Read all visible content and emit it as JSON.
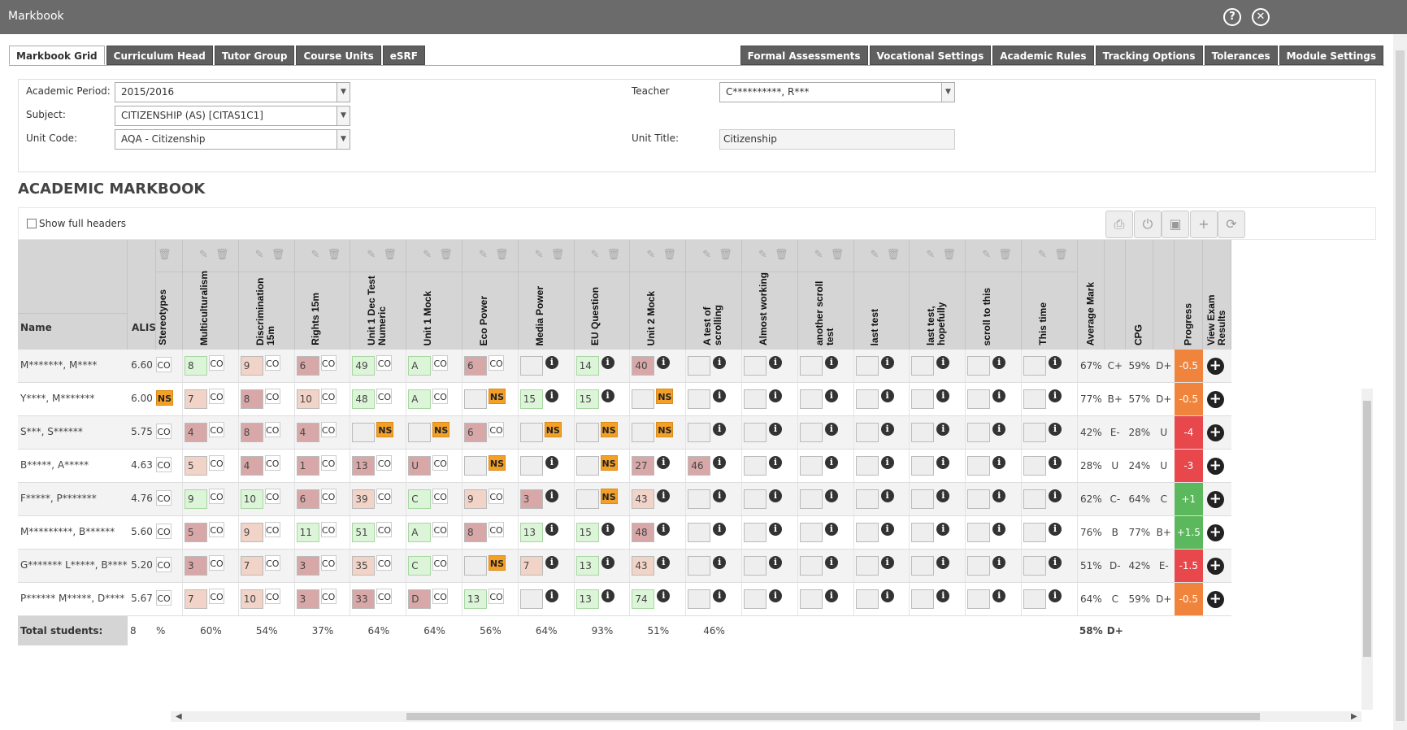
{
  "window": {
    "title": "Markbook",
    "help_icon": "help-icon",
    "close_icon": "close-icon"
  },
  "tabs_left": [
    "Markbook Grid",
    "Curriculum Head",
    "Tutor Group",
    "Course Units",
    "eSRF"
  ],
  "tabs_right": [
    "Formal Assessments",
    "Vocational Settings",
    "Academic Rules",
    "Tracking Options",
    "Tolerances",
    "Module Settings"
  ],
  "filters": {
    "academic_period_label": "Academic Period:",
    "academic_period_value": "2015/2016",
    "subject_label": "Subject:",
    "subject_value": "CITIZENSHIP (AS) [CITAS1C1]",
    "unit_code_label": "Unit Code:",
    "unit_code_value": "AQA - Citizenship",
    "teacher_label": "Teacher",
    "teacher_value": "C**********, R***",
    "unit_title_label": "Unit Title:",
    "unit_title_value": "Citizenship"
  },
  "markbook": {
    "title": "ACADEMIC MARKBOOK",
    "show_full_headers": "Show full headers",
    "toolbar_icons": [
      "print-icon",
      "power-icon",
      "save-icon",
      "plus-icon",
      "refresh-icon"
    ]
  },
  "grid": {
    "name_header": "Name",
    "alis_header": "ALIS",
    "partial_header": "Stereotypes",
    "columns": [
      "Multiculturalism",
      "Discrimination 15m",
      "Rights 15m",
      "Unit 1 Dec Test Numeric",
      "Unit 1 Mock",
      "Eco Power",
      "Media Power",
      "EU Question",
      "Unit 2 Mock",
      "A test of scrolling",
      "Almost working",
      "another scroll test",
      "last test",
      "last test, hopefully",
      "scroll to this",
      "This time"
    ],
    "summary_headers": [
      "Average Mark",
      "CPG",
      "Progress",
      "View Exam Results"
    ],
    "rows": [
      {
        "name": "M*******, M****",
        "alis": "6.60",
        "partial": "CO",
        "avg": "67%",
        "grade1": "C+",
        "cpg": "59%",
        "grade2": "D+",
        "progress": "-0.5",
        "progress_color": "#f0843c",
        "marks": [
          [
            "8",
            "green",
            "CO"
          ],
          [
            "9",
            "pink",
            "CO"
          ],
          [
            "6",
            "rose",
            "CO"
          ],
          [
            "49",
            "green",
            "CO"
          ],
          [
            "A",
            "green",
            "CO"
          ],
          [
            "6",
            "rose",
            "CO"
          ],
          [
            "",
            "blank",
            "i"
          ],
          [
            "14",
            "green",
            "i"
          ],
          [
            "40",
            "rose",
            "i"
          ],
          [
            "",
            "blank",
            "i"
          ],
          [
            "",
            "blank",
            "i"
          ],
          [
            "",
            "blank",
            "i"
          ],
          [
            "",
            "blank",
            "i"
          ],
          [
            "",
            "blank",
            "i"
          ],
          [
            "",
            "blank",
            "i"
          ],
          [
            "",
            "blank",
            "i"
          ]
        ]
      },
      {
        "name": "Y****, M*******",
        "alis": "6.00",
        "partial": "NS",
        "avg": "77%",
        "grade1": "B+",
        "cpg": "57%",
        "grade2": "D+",
        "progress": "-0.5",
        "progress_color": "#f0843c",
        "marks": [
          [
            "7",
            "pink",
            "CO"
          ],
          [
            "8",
            "rose",
            "CO"
          ],
          [
            "10",
            "pink",
            "CO"
          ],
          [
            "48",
            "green",
            "CO"
          ],
          [
            "A",
            "green",
            "CO"
          ],
          [
            "",
            "blank",
            "NS"
          ],
          [
            "15",
            "green",
            "i"
          ],
          [
            "15",
            "green",
            "i"
          ],
          [
            "",
            "blank",
            "NS"
          ],
          [
            "",
            "blank",
            "i"
          ],
          [
            "",
            "blank",
            "i"
          ],
          [
            "",
            "blank",
            "i"
          ],
          [
            "",
            "blank",
            "i"
          ],
          [
            "",
            "blank",
            "i"
          ],
          [
            "",
            "blank",
            "i"
          ],
          [
            "",
            "blank",
            "i"
          ]
        ]
      },
      {
        "name": "S***, S******",
        "alis": "5.75",
        "partial": "CO",
        "avg": "42%",
        "grade1": "E-",
        "cpg": "28%",
        "grade2": "U",
        "progress": "-4",
        "progress_color": "#e8474c",
        "marks": [
          [
            "4",
            "rose",
            "CO"
          ],
          [
            "8",
            "rose",
            "CO"
          ],
          [
            "4",
            "rose",
            "CO"
          ],
          [
            "",
            "blank",
            "NS"
          ],
          [
            "",
            "blank",
            "NS"
          ],
          [
            "6",
            "rose",
            "CO"
          ],
          [
            "",
            "blank",
            "NS"
          ],
          [
            "",
            "blank",
            "NS"
          ],
          [
            "",
            "blank",
            "NS"
          ],
          [
            "",
            "blank",
            "i"
          ],
          [
            "",
            "blank",
            "i"
          ],
          [
            "",
            "blank",
            "i"
          ],
          [
            "",
            "blank",
            "i"
          ],
          [
            "",
            "blank",
            "i"
          ],
          [
            "",
            "blank",
            "i"
          ],
          [
            "",
            "blank",
            "i"
          ]
        ]
      },
      {
        "name": "B*****, A*****",
        "alis": "4.63",
        "partial": "CO",
        "avg": "28%",
        "grade1": "U",
        "cpg": "24%",
        "grade2": "U",
        "progress": "-3",
        "progress_color": "#e8474c",
        "marks": [
          [
            "5",
            "pink",
            "CO"
          ],
          [
            "4",
            "rose",
            "CO"
          ],
          [
            "1",
            "rose",
            "CO"
          ],
          [
            "13",
            "rose",
            "CO"
          ],
          [
            "U",
            "rose",
            "CO"
          ],
          [
            "",
            "blank",
            "NS"
          ],
          [
            "",
            "blank",
            "i"
          ],
          [
            "",
            "blank",
            "NS"
          ],
          [
            "27",
            "rose",
            "i"
          ],
          [
            "46",
            "rose",
            "i"
          ],
          [
            "",
            "blank",
            "i"
          ],
          [
            "",
            "blank",
            "i"
          ],
          [
            "",
            "blank",
            "i"
          ],
          [
            "",
            "blank",
            "i"
          ],
          [
            "",
            "blank",
            "i"
          ],
          [
            "",
            "blank",
            "i"
          ]
        ]
      },
      {
        "name": "F*****, P*******",
        "alis": "4.76",
        "partial": "CO",
        "avg": "62%",
        "grade1": "C-",
        "cpg": "64%",
        "grade2": "C",
        "progress": "+1",
        "progress_color": "#5cb85c",
        "marks": [
          [
            "9",
            "green",
            "CO"
          ],
          [
            "10",
            "green",
            "CO"
          ],
          [
            "6",
            "rose",
            "CO"
          ],
          [
            "39",
            "pink",
            "CO"
          ],
          [
            "C",
            "green",
            "CO"
          ],
          [
            "9",
            "pink",
            "CO"
          ],
          [
            "3",
            "rose",
            "i"
          ],
          [
            "",
            "blank",
            "NS"
          ],
          [
            "43",
            "pink",
            "i"
          ],
          [
            "",
            "blank",
            "i"
          ],
          [
            "",
            "blank",
            "i"
          ],
          [
            "",
            "blank",
            "i"
          ],
          [
            "",
            "blank",
            "i"
          ],
          [
            "",
            "blank",
            "i"
          ],
          [
            "",
            "blank",
            "i"
          ],
          [
            "",
            "blank",
            "i"
          ]
        ]
      },
      {
        "name": "M*********, B******",
        "alis": "5.60",
        "partial": "CO",
        "avg": "76%",
        "grade1": "B",
        "cpg": "77%",
        "grade2": "B+",
        "progress": "+1.5",
        "progress_color": "#5cb85c",
        "marks": [
          [
            "5",
            "rose",
            "CO"
          ],
          [
            "9",
            "pink",
            "CO"
          ],
          [
            "11",
            "green",
            "CO"
          ],
          [
            "51",
            "green",
            "CO"
          ],
          [
            "A",
            "green",
            "CO"
          ],
          [
            "8",
            "rose",
            "CO"
          ],
          [
            "13",
            "green",
            "i"
          ],
          [
            "15",
            "green",
            "i"
          ],
          [
            "48",
            "rose",
            "i"
          ],
          [
            "",
            "blank",
            "i"
          ],
          [
            "",
            "blank",
            "i"
          ],
          [
            "",
            "blank",
            "i"
          ],
          [
            "",
            "blank",
            "i"
          ],
          [
            "",
            "blank",
            "i"
          ],
          [
            "",
            "blank",
            "i"
          ],
          [
            "",
            "blank",
            "i"
          ]
        ]
      },
      {
        "name": "G******* L*****, B****",
        "alis": "5.20",
        "partial": "CO",
        "avg": "51%",
        "grade1": "D-",
        "cpg": "42%",
        "grade2": "E-",
        "progress": "-1.5",
        "progress_color": "#e8474c",
        "marks": [
          [
            "3",
            "rose",
            "CO"
          ],
          [
            "7",
            "pink",
            "CO"
          ],
          [
            "3",
            "rose",
            "CO"
          ],
          [
            "35",
            "pink",
            "CO"
          ],
          [
            "C",
            "green",
            "CO"
          ],
          [
            "",
            "blank",
            "NS"
          ],
          [
            "7",
            "pink",
            "i"
          ],
          [
            "13",
            "green",
            "i"
          ],
          [
            "43",
            "pink",
            "i"
          ],
          [
            "",
            "blank",
            "i"
          ],
          [
            "",
            "blank",
            "i"
          ],
          [
            "",
            "blank",
            "i"
          ],
          [
            "",
            "blank",
            "i"
          ],
          [
            "",
            "blank",
            "i"
          ],
          [
            "",
            "blank",
            "i"
          ],
          [
            "",
            "blank",
            "i"
          ]
        ]
      },
      {
        "name": "P****** M*****, D****",
        "alis": "5.67",
        "partial": "CO",
        "avg": "64%",
        "grade1": "C",
        "cpg": "59%",
        "grade2": "D+",
        "progress": "-0.5",
        "progress_color": "#f0843c",
        "marks": [
          [
            "7",
            "pink",
            "CO"
          ],
          [
            "10",
            "pink",
            "CO"
          ],
          [
            "3",
            "rose",
            "CO"
          ],
          [
            "33",
            "rose",
            "CO"
          ],
          [
            "D",
            "rose",
            "CO"
          ],
          [
            "13",
            "green",
            "CO"
          ],
          [
            "",
            "blank",
            "i"
          ],
          [
            "13",
            "green",
            "i"
          ],
          [
            "74",
            "green",
            "i"
          ],
          [
            "",
            "blank",
            "i"
          ],
          [
            "",
            "blank",
            "i"
          ],
          [
            "",
            "blank",
            "i"
          ],
          [
            "",
            "blank",
            "i"
          ],
          [
            "",
            "blank",
            "i"
          ],
          [
            "",
            "blank",
            "i"
          ],
          [
            "",
            "blank",
            "i"
          ]
        ]
      }
    ],
    "totals": {
      "label": "Total students:",
      "count": "8",
      "partial": "%",
      "column_pcts": [
        "60%",
        "54%",
        "37%",
        "64%",
        "64%",
        "56%",
        "64%",
        "93%",
        "51%",
        "46%",
        "",
        "",
        "",
        "",
        "",
        ""
      ],
      "avg": "58%",
      "grade": "D+"
    }
  }
}
